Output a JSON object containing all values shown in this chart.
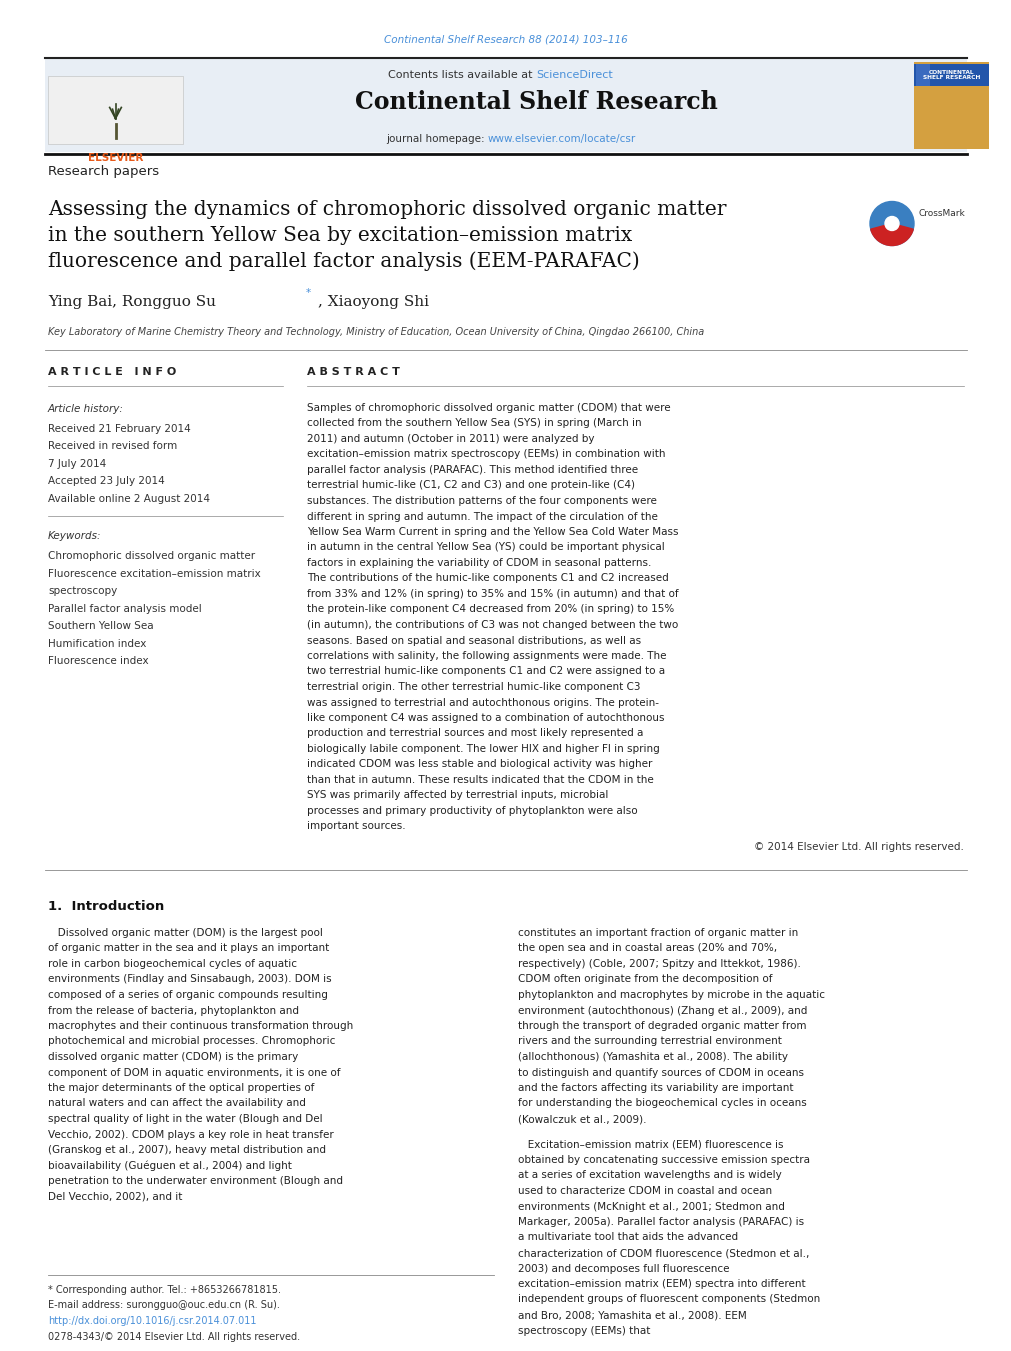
{
  "page_width": 9.92,
  "page_height": 13.23,
  "background_color": "#ffffff",
  "top_journal_ref": "Continental Shelf Research 88 (2014) 103–116",
  "top_journal_ref_color": "#4a90d9",
  "header_bg_color": "#e8eef5",
  "journal_name": "Continental Shelf Research",
  "contents_text": "Contents lists available at ",
  "sciencedirect_text": "ScienceDirect",
  "sciencedirect_color": "#4a90d9",
  "homepage_text": "journal homepage: ",
  "homepage_url": "www.elsevier.com/locate/csr",
  "homepage_url_color": "#4a90d9",
  "section_label": "Research papers",
  "paper_title": "Assessing the dynamics of chromophoric dissolved organic matter\nin the southern Yellow Sea by excitation–emission matrix\nfluorescence and parallel factor analysis (EEM-PARAFAC)",
  "authors": "Ying Bai, Rongguo Su",
  "authors_star": "*",
  "authors_end": ", Xiaoyong Shi",
  "affiliation": "Key Laboratory of Marine Chemistry Theory and Technology, Ministry of Education, Ocean University of China, Qingdao 266100, China",
  "article_info_title": "A R T I C L E   I N F O",
  "article_history_label": "Article history:",
  "article_history": [
    "Received 21 February 2014",
    "Received in revised form",
    "7 July 2014",
    "Accepted 23 July 2014",
    "Available online 2 August 2014"
  ],
  "keywords_label": "Keywords:",
  "keywords": [
    "Chromophoric dissolved organic matter",
    "Fluorescence excitation–emission matrix",
    "spectroscopy",
    "Parallel factor analysis model",
    "Southern Yellow Sea",
    "Humification index",
    "Fluorescence index"
  ],
  "abstract_title": "A B S T R A C T",
  "abstract_text": "Samples of chromophoric dissolved organic matter (CDOM) that were collected from the southern Yellow Sea (SYS) in spring (March in 2011) and autumn (October in 2011) were analyzed by excitation–emission matrix spectroscopy (EEMs) in combination with parallel factor analysis (PARAFAC). This method identified three terrestrial humic-like (C1, C2 and C3) and one protein-like (C4) substances. The distribution patterns of the four components were different in spring and autumn. The impact of the circulation of the Yellow Sea Warm Current in spring and the Yellow Sea Cold Water Mass in autumn in the central Yellow Sea (YS) could be important physical factors in explaining the variability of CDOM in seasonal patterns. The contributions of the humic-like components C1 and C2 increased from 33% and 12% (in spring) to 35% and 15% (in autumn) and that of the protein-like component C4 decreased from 20% (in spring) to 15% (in autumn), the contributions of C3 was not changed between the two seasons. Based on spatial and seasonal distributions, as well as correlations with salinity, the following assignments were made. The two terrestrial humic-like components C1 and C2 were assigned to a terrestrial origin. The other terrestrial humic-like component C3 was assigned to terrestrial and autochthonous origins. The protein-like component C4 was assigned to a combination of autochthonous production and terrestrial sources and most likely represented a biologically labile component. The lower HIX and higher FI in spring indicated CDOM was less stable and biological activity was higher than that in autumn. These results indicated that the CDOM in the SYS was primarily affected by terrestrial inputs, microbial processes and primary productivity of phytoplankton were also important sources.",
  "copyright": "© 2014 Elsevier Ltd. All rights reserved.",
  "intro_title": "1.  Introduction",
  "intro_col1": "   Dissolved organic matter (DOM) is the largest pool of organic matter in the sea and it plays an important role in carbon biogeochemical cycles of aquatic environments (Findlay and Sinsabaugh, 2003). DOM is composed of a series of organic compounds resulting from the release of bacteria, phytoplankton and macrophytes and their continuous transformation through photochemical and microbial processes. Chromophoric dissolved organic matter (CDOM) is the primary component of DOM in aquatic environments, it is one of the major determinants of the optical properties of natural waters and can affect the availability and spectral quality of light in the water (Blough and Del Vecchio, 2002). CDOM plays a key role in heat transfer (Granskog et al., 2007), heavy metal distribution and bioavailability (Guéguen et al., 2004) and light penetration to the underwater environment (Blough and Del Vecchio, 2002), and it",
  "intro_col2a": "constitutes an important fraction of organic matter in the open sea and in coastal areas (20% and 70%, respectively) (Coble, 2007; Spitzy and Ittekkot, 1986). CDOM often originate from the decomposition of phytoplankton and macrophytes by microbe in the aquatic environment (autochthonous) (Zhang et al., 2009), and through the transport of degraded organic matter from rivers and the surrounding terrestrial environment (allochthonous) (Yamashita et al., 2008). The ability to distinguish and quantify sources of CDOM in oceans and the factors affecting its variability are important for understanding the biogeochemical cycles in oceans (Kowalczuk et al., 2009).",
  "intro_col2b": "   Excitation–emission matrix (EEM) fluorescence is obtained by concatenating successive emission spectra at a series of excitation wavelengths and is widely used to characterize CDOM in coastal and ocean environments (McKnight et al., 2001; Stedmon and Markager, 2005a). Parallel factor analysis (PARAFAC) is a multivariate tool that aids the advanced characterization of CDOM fluorescence (Stedmon et al., 2003) and decomposes full fluorescence excitation–emission matrix (EEM) spectra into different independent groups of fluorescent components (Stedmon and Bro, 2008; Yamashita et al., 2008). EEM spectroscopy (EEMs) that",
  "footer_footnote": "* Corresponding author. Tel.: +8653266781815.",
  "footer_email": "E-mail address: surongguo@ouc.edu.cn (R. Su).",
  "footer_doi": "http://dx.doi.org/10.1016/j.csr.2014.07.011",
  "footer_issn": "0278-4343/© 2014 Elsevier Ltd. All rights reserved.",
  "link_color": "#4a90d9"
}
